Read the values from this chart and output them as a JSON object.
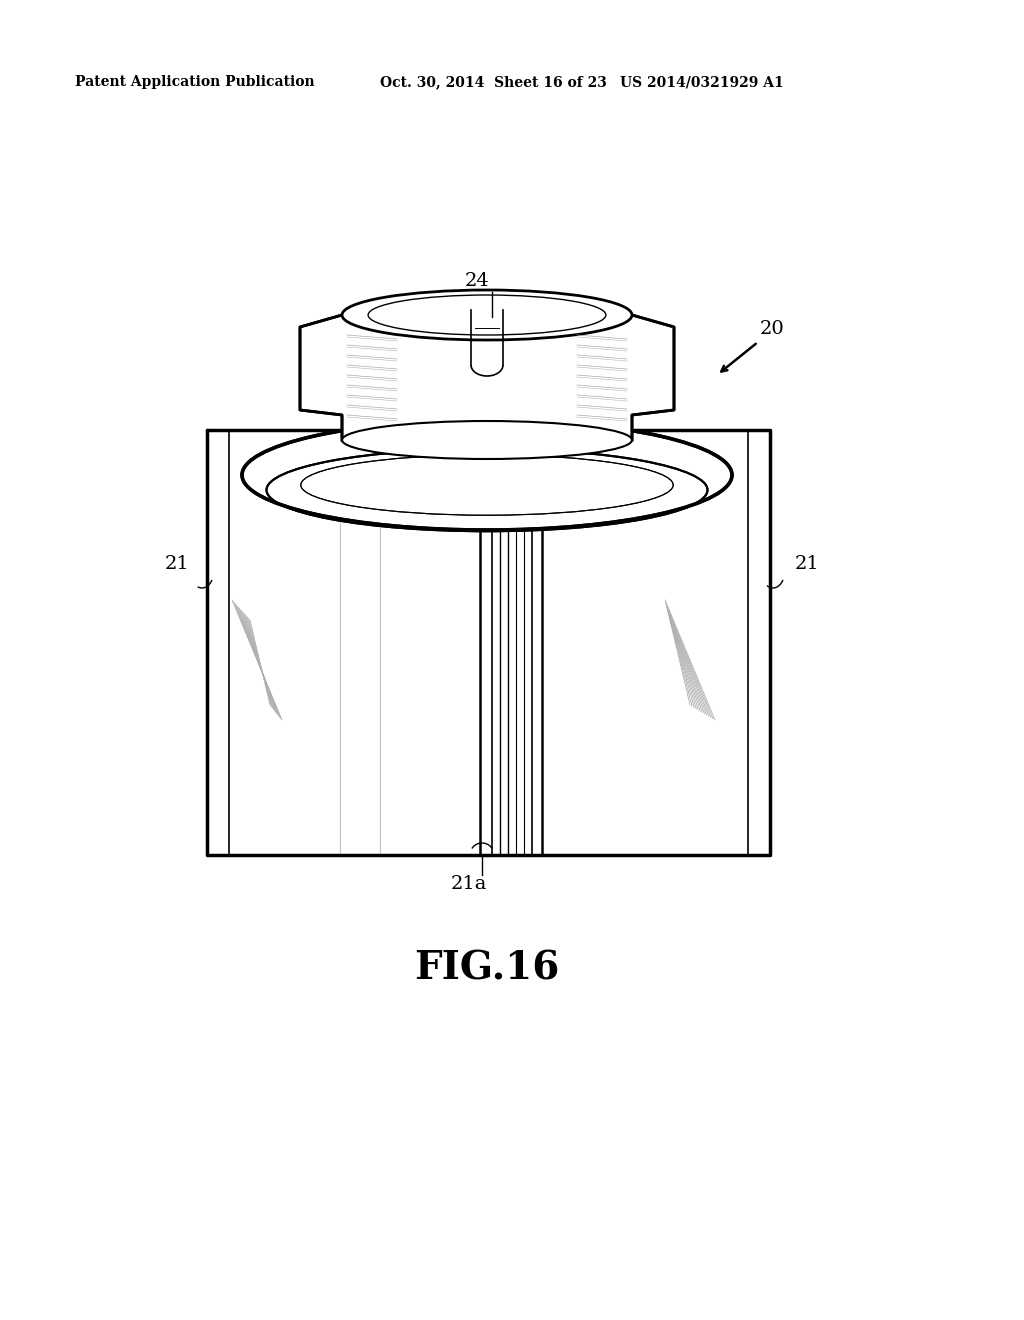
{
  "header_left": "Patent Application Publication",
  "header_mid": "Oct. 30, 2014  Sheet 16 of 23",
  "header_right": "US 2014/0321929 A1",
  "figure_label": "FIG.16",
  "bg_color": "#ffffff",
  "line_color": "#000000"
}
